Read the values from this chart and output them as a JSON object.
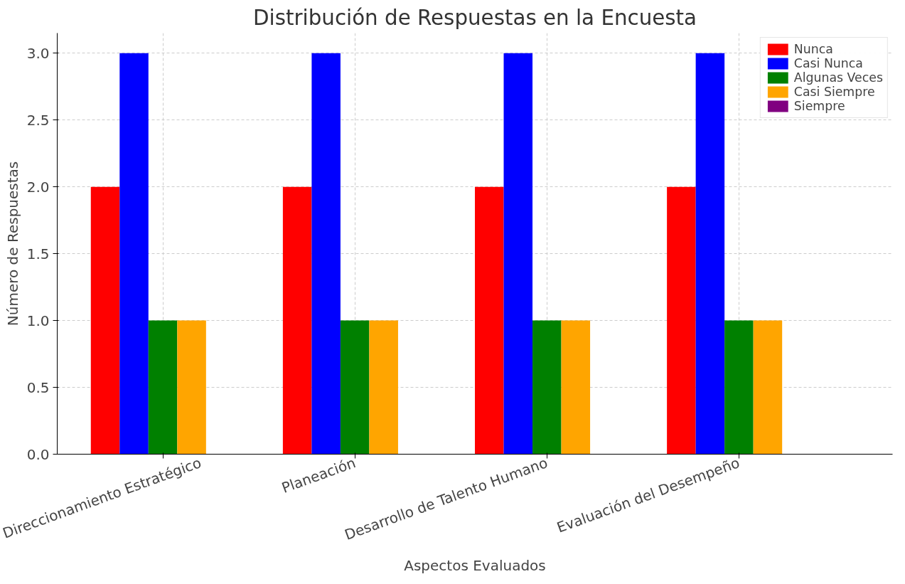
{
  "chart_data": {
    "type": "bar",
    "title": "Distribución de Respuestas en la Encuesta",
    "xlabel": "Aspectos Evaluados",
    "ylabel": "Número de Respuestas",
    "categories": [
      "Direccionamiento Estratégico",
      "Planeación",
      "Desarrollo de Talento Humano",
      "Evaluación del Desempeño"
    ],
    "series": [
      {
        "name": "Nunca",
        "color": "#ff0000",
        "values": [
          2,
          2,
          2,
          2
        ]
      },
      {
        "name": "Casi Nunca",
        "color": "#0000ff",
        "values": [
          3,
          3,
          3,
          3
        ]
      },
      {
        "name": "Algunas Veces",
        "color": "#008000",
        "values": [
          1,
          1,
          1,
          1
        ]
      },
      {
        "name": "Casi Siempre",
        "color": "#ffa500",
        "values": [
          1,
          1,
          1,
          1
        ]
      },
      {
        "name": "Siempre",
        "color": "#800080",
        "values": [
          0,
          0,
          0,
          0
        ]
      }
    ],
    "ylim": [
      0,
      3.15
    ],
    "yticks": [
      {
        "value": 0,
        "label": "0.0"
      },
      0.5,
      {
        "value": 1,
        "label": "1.0"
      },
      1.5,
      {
        "value": 2,
        "label": "2.0"
      },
      2.5,
      {
        "value": 3,
        "label": "3.0"
      }
    ],
    "grid": true,
    "legend": "top right"
  }
}
